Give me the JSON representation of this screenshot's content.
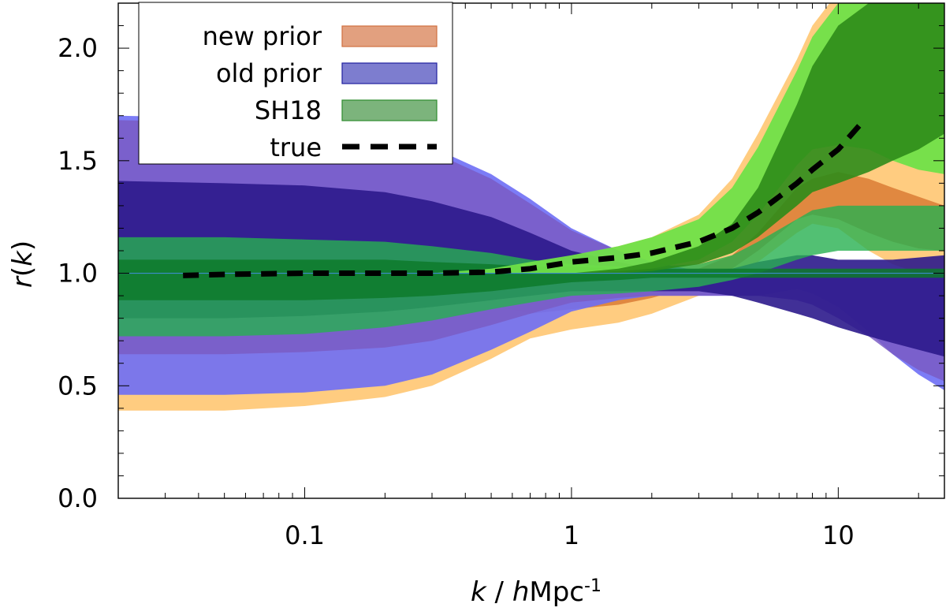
{
  "chart_data": {
    "type": "area",
    "title": "",
    "xlabel": {
      "var": "k",
      "sep": " / ",
      "unit_italic": "h",
      "unit_rest": "Mpc",
      "unit_sup": "-1"
    },
    "ylabel": {
      "func": "r",
      "open": "(",
      "var": "k",
      "close": ")"
    },
    "x_scale": "log",
    "xlim": [
      0.02,
      25
    ],
    "ylim": [
      0,
      2.2
    ],
    "x_ticks": [
      {
        "value": 0.1,
        "label": "0.1"
      },
      {
        "value": 1,
        "label": "1"
      },
      {
        "value": 10,
        "label": "10"
      }
    ],
    "y_ticks": [
      {
        "value": 0.0,
        "label": "0.0"
      },
      {
        "value": 0.5,
        "label": "0.5"
      },
      {
        "value": 1.0,
        "label": "1.0"
      },
      {
        "value": 1.5,
        "label": "1.5"
      },
      {
        "value": 2.0,
        "label": "2.0"
      }
    ],
    "reference_line": {
      "y": 1.0,
      "color": "#3c8ccc"
    },
    "k": [
      0.02,
      0.05,
      0.1,
      0.2,
      0.3,
      0.5,
      0.7,
      1,
      1.5,
      2,
      3,
      4,
      5,
      7,
      8,
      10,
      13,
      16,
      20,
      25
    ],
    "series": [
      {
        "name": "new prior",
        "legend_color": "#e2a07f",
        "legend_edge": "#d07040",
        "bands": [
          {
            "color": "#ffcc80",
            "opacity": 1.0,
            "upper": [
              1.0,
              1.0,
              1.0,
              1.0,
              1.02,
              1.04,
              1.06,
              1.08,
              1.12,
              1.16,
              1.26,
              1.42,
              1.62,
              1.95,
              2.1,
              2.25,
              2.35,
              2.4,
              2.4,
              2.4
            ],
            "lower": [
              0.39,
              0.39,
              0.41,
              0.45,
              0.5,
              0.62,
              0.71,
              0.75,
              0.78,
              0.82,
              0.9,
              0.98,
              1.05,
              1.18,
              1.22,
              1.2,
              1.1,
              1.04,
              1.0,
              0.98
            ]
          },
          {
            "color": "#e08840",
            "opacity": 1.0,
            "upper": [
              1.0,
              1.0,
              1.0,
              1.0,
              1.0,
              1.0,
              1.0,
              1.0,
              1.0,
              1.01,
              1.02,
              1.08,
              1.18,
              1.38,
              1.42,
              1.45,
              1.42,
              1.38,
              1.34,
              1.3
            ],
            "lower": [
              1.0,
              1.0,
              1.0,
              1.0,
              1.0,
              0.86,
              0.82,
              0.84,
              0.86,
              0.89,
              0.95,
              1.02,
              1.1,
              1.24,
              1.26,
              1.24,
              1.18,
              1.14,
              1.11,
              1.1
            ]
          }
        ]
      },
      {
        "name": "old prior",
        "legend_color": "#7d7dcf",
        "legend_edge": "#2020a0",
        "bands": [
          {
            "color": "#6e6ef5",
            "opacity": 0.9,
            "upper": [
              1.7,
              1.69,
              1.67,
              1.62,
              1.56,
              1.44,
              1.33,
              1.2,
              1.1,
              1.05,
              1.01,
              1.0,
              1.0,
              1.0,
              1.0,
              1.0,
              1.0,
              1.0,
              1.0,
              1.0
            ],
            "lower": [
              0.46,
              0.46,
              0.47,
              0.5,
              0.55,
              0.66,
              0.74,
              0.83,
              0.88,
              0.9,
              0.9,
              0.9,
              0.9,
              0.93,
              0.91,
              0.85,
              0.74,
              0.64,
              0.55,
              0.48
            ]
          },
          {
            "color": "#7a5cc4",
            "opacity": 0.85,
            "upper": [
              1.68,
              1.67,
              1.65,
              1.6,
              1.54,
              1.42,
              1.31,
              1.19,
              1.1,
              1.05,
              1.01,
              1.0,
              1.0,
              1.0,
              1.0,
              1.0,
              1.0,
              1.0,
              1.0,
              1.0
            ],
            "lower": [
              0.64,
              0.64,
              0.65,
              0.67,
              0.7,
              0.77,
              0.82,
              0.87,
              0.89,
              0.9,
              0.9,
              0.9,
              0.9,
              0.88,
              0.86,
              0.8,
              0.72,
              0.64,
              0.57,
              0.52
            ]
          },
          {
            "color": "#2c1a8c",
            "opacity": 0.9,
            "upper": [
              1.41,
              1.4,
              1.39,
              1.36,
              1.32,
              1.25,
              1.18,
              1.1,
              1.05,
              1.02,
              1.01,
              1.02,
              1.05,
              1.08,
              1.08,
              1.06,
              1.06,
              1.06,
              1.07,
              1.08
            ],
            "lower": [
              0.8,
              0.8,
              0.81,
              0.83,
              0.85,
              0.88,
              0.9,
              0.92,
              0.92,
              0.92,
              0.92,
              0.9,
              0.87,
              0.82,
              0.8,
              0.76,
              0.72,
              0.69,
              0.66,
              0.63
            ]
          }
        ]
      },
      {
        "name": "SH18",
        "legend_color": "#7cb47c",
        "legend_edge": "#2e8b2e",
        "bands": [
          {
            "color": "#27b050",
            "opacity": 0.8,
            "upper": [
              1.16,
              1.16,
              1.15,
              1.14,
              1.12,
              1.09,
              1.06,
              1.04,
              1.03,
              1.03,
              1.04,
              1.08,
              1.14,
              1.24,
              1.28,
              1.3,
              1.3,
              1.3,
              1.3,
              1.3
            ],
            "lower": [
              0.72,
              0.72,
              0.73,
              0.76,
              0.79,
              0.84,
              0.87,
              0.9,
              0.91,
              0.92,
              0.94,
              0.97,
              1.0,
              1.06,
              1.08,
              1.1,
              1.1,
              1.1,
              1.1,
              1.1
            ]
          },
          {
            "color": "#0d7a2a",
            "opacity": 0.85,
            "upper": [
              1.06,
              1.06,
              1.06,
              1.06,
              1.05,
              1.04,
              1.03,
              1.03,
              1.02,
              1.02,
              1.02,
              1.02,
              1.02,
              1.02,
              1.02,
              1.02,
              1.02,
              1.02,
              1.02,
              1.02
            ],
            "lower": [
              0.88,
              0.88,
              0.88,
              0.89,
              0.9,
              0.92,
              0.94,
              0.96,
              0.97,
              0.98,
              0.98,
              0.98,
              0.98,
              0.98,
              0.98,
              0.98,
              0.98,
              0.98,
              0.98,
              0.98
            ]
          },
          {
            "color": "#70e048",
            "opacity": 0.95,
            "upper": [
              1.0,
              1.0,
              1.0,
              1.0,
              1.0,
              1.02,
              1.05,
              1.08,
              1.12,
              1.16,
              1.24,
              1.38,
              1.56,
              1.9,
              2.05,
              2.2,
              2.3,
              2.35,
              2.35,
              2.35
            ],
            "lower": [
              1.0,
              1.0,
              1.0,
              1.0,
              1.0,
              1.0,
              1.0,
              1.0,
              1.01,
              1.02,
              1.06,
              1.14,
              1.26,
              1.48,
              1.55,
              1.57,
              1.55,
              1.5,
              1.46,
              1.44
            ]
          },
          {
            "color": "#2e8c1a",
            "opacity": 0.9,
            "upper": [
              1.0,
              1.0,
              1.0,
              1.0,
              1.0,
              1.0,
              1.0,
              1.0,
              1.02,
              1.05,
              1.12,
              1.22,
              1.38,
              1.75,
              1.92,
              2.1,
              2.2,
              2.25,
              2.25,
              2.25
            ],
            "lower": [
              1.0,
              1.0,
              1.0,
              1.0,
              1.0,
              1.0,
              1.0,
              1.0,
              1.0,
              1.01,
              1.04,
              1.09,
              1.16,
              1.3,
              1.36,
              1.4,
              1.45,
              1.5,
              1.55,
              1.62
            ]
          }
        ]
      },
      {
        "name": "true",
        "style": "dashed",
        "color": "#000000",
        "k": [
          0.035,
          0.05,
          0.1,
          0.2,
          0.3,
          0.5,
          0.7,
          1,
          1.5,
          2,
          3,
          4,
          5,
          6,
          7,
          8,
          10,
          12.5
        ],
        "values": [
          0.99,
          0.995,
          1.0,
          1.0,
          1.0,
          1.005,
          1.02,
          1.05,
          1.07,
          1.09,
          1.14,
          1.2,
          1.27,
          1.34,
          1.4,
          1.46,
          1.55,
          1.68
        ]
      }
    ],
    "legend": {
      "placement": "top-left"
    }
  }
}
